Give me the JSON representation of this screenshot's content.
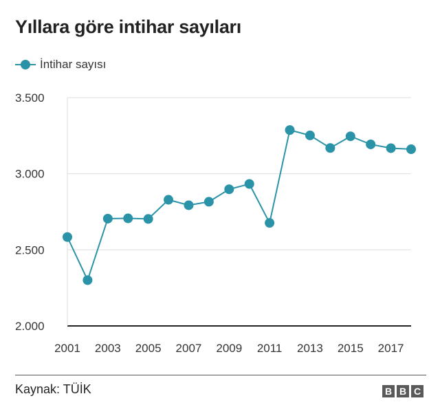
{
  "header": {
    "title": "Yıllara göre intihar sayıları"
  },
  "legend": {
    "label": "İntihar sayısı"
  },
  "footer": {
    "source": "Kaynak: TÜİK",
    "logo_letters": [
      "B",
      "B",
      "C"
    ]
  },
  "colors": {
    "series": "#2b93a8",
    "baseline": "#222222",
    "grid": "#dddddd"
  },
  "chart_data": {
    "type": "line",
    "title": "Yıllara göre intihar sayıları",
    "xlabel": "",
    "ylabel": "",
    "x": [
      2001,
      2002,
      2003,
      2004,
      2005,
      2006,
      2007,
      2008,
      2009,
      2010,
      2011,
      2012,
      2013,
      2014,
      2015,
      2016,
      2017,
      2018
    ],
    "series": [
      {
        "name": "İntihar sayısı",
        "values": [
          2584,
          2301,
          2705,
          2707,
          2703,
          2829,
          2793,
          2816,
          2898,
          2933,
          2677,
          3287,
          3252,
          3169,
          3246,
          3193,
          3168,
          3161
        ]
      }
    ],
    "ylim": [
      2000,
      3500
    ],
    "yticks": [
      2000,
      2500,
      3000,
      3500
    ],
    "ytick_labels": [
      "2.000",
      "2.500",
      "3.000",
      "3.500"
    ],
    "xticks": [
      2001,
      2003,
      2005,
      2007,
      2009,
      2011,
      2013,
      2015,
      2017
    ],
    "xtick_labels": [
      "2001",
      "2003",
      "2005",
      "2007",
      "2009",
      "2011",
      "2013",
      "2015",
      "2017"
    ],
    "grid": true,
    "legend_position": "top-left"
  }
}
